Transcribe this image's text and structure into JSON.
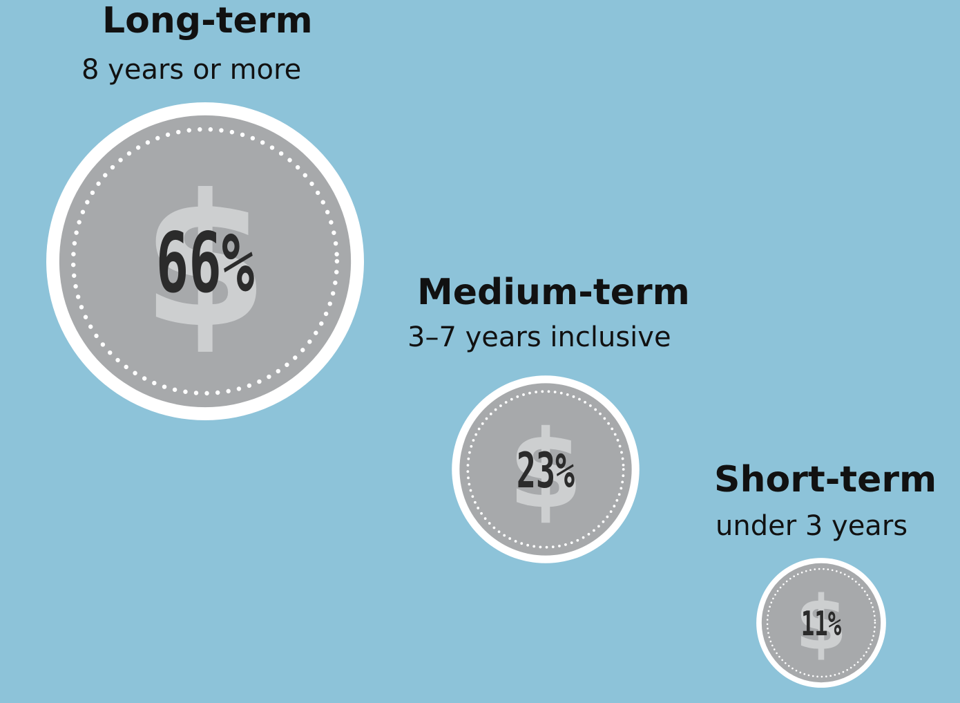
{
  "chart_data": {
    "type": "bubble",
    "categories": [
      {
        "title": "Long-term",
        "subtitle": "8 years or more",
        "value": 66,
        "label": "66%"
      },
      {
        "title": "Medium-term",
        "subtitle": "3–7 years inclusive",
        "value": 23,
        "label": "23%"
      },
      {
        "title": "Short-term",
        "subtitle": "under 3 years",
        "value": 11,
        "label": "11%"
      }
    ],
    "icon": "dollar-coin-icon",
    "colors": {
      "background": "#8dc3d9",
      "coin_face": "#a7a9ab",
      "coin_rim": "#ffffff",
      "dollar_sign": "#cdcfd0",
      "text": "#111111"
    }
  }
}
